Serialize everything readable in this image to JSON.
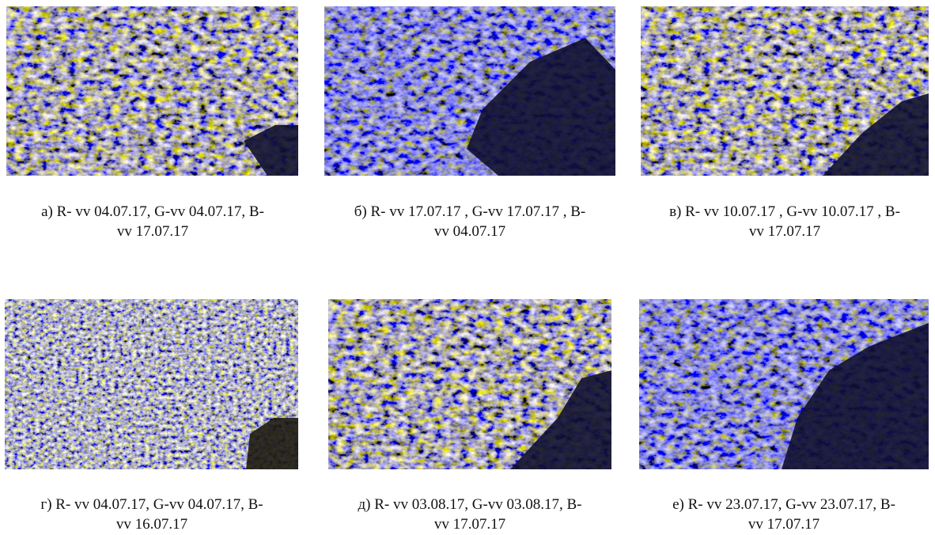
{
  "figures": [
    {
      "caption": [
        "а) R- vv 04.07.17, G-vv 04.07.17, B-",
        "vv 17.07.17"
      ]
    },
    {
      "caption": [
        "б) R- vv 17.07.17 , G-vv 17.07.17 , B-",
        "vv 04.07.17"
      ]
    },
    {
      "caption": [
        "в) R- vv 10.07.17 , G-vv 10.07.17 , B-",
        "vv 17.07.17"
      ]
    },
    {
      "caption": [
        "г) R- vv 04.07.17, G-vv 04.07.17, B-",
        "vv 16.07.17"
      ]
    },
    {
      "caption": [
        "д) R- vv 03.08.17, G-vv 03.08.17, B-",
        "vv 17.07.17"
      ]
    },
    {
      "caption": [
        "е) R- vv 23.07.17, G-vv 23.07.17, B-",
        "vv 17.07.17"
      ]
    }
  ]
}
